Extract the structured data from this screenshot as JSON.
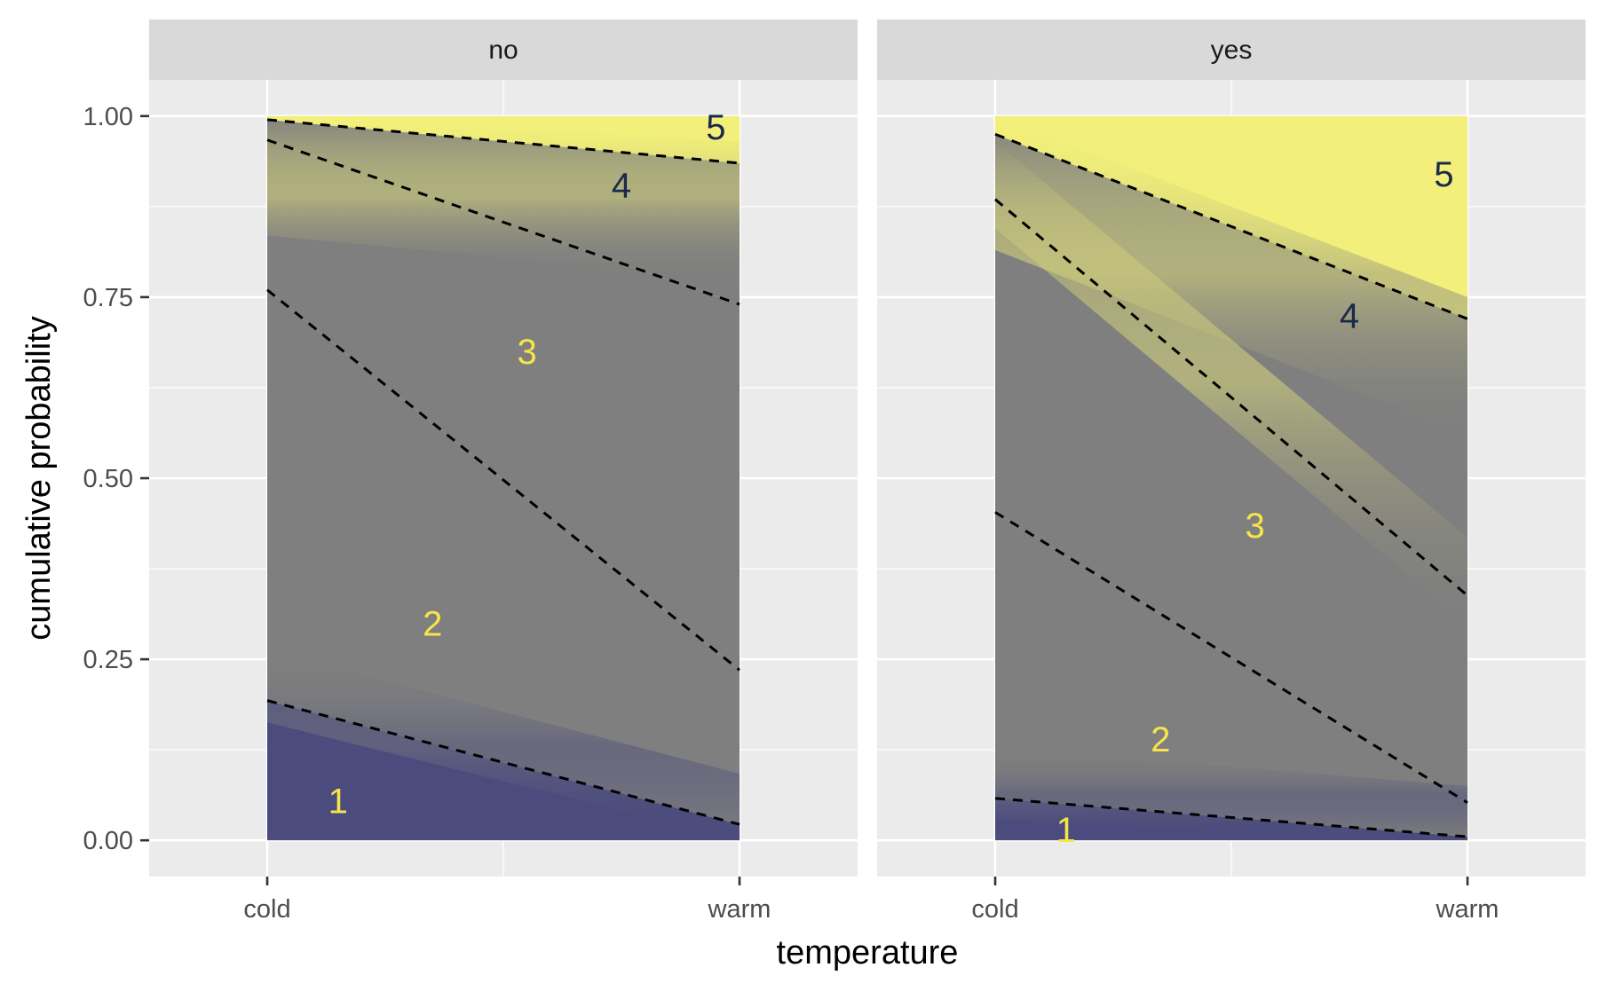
{
  "chart_data": {
    "type": "area",
    "xlabel": "temperature",
    "ylabel": "cumulative probability",
    "x_categories": [
      "cold",
      "warm"
    ],
    "y_ticks": [
      "0.00",
      "0.25",
      "0.50",
      "0.75",
      "1.00"
    ],
    "ylim": [
      0,
      1
    ],
    "grid": true,
    "legend": "none",
    "colors": {
      "panel_bg": "#ebebeb",
      "strip_bg": "#d9d9d9",
      "grid": "#ffffff",
      "band_1": "#4b4b7d",
      "band_mid": "#7f7f7f",
      "band_5": "#f2f07a",
      "dashed_line": "#000000",
      "label_light": "#f7e44a",
      "label_dark": "#1a2a4a"
    },
    "panels": [
      {
        "facet": "no",
        "boundaries": [
          {
            "name": "1",
            "cold": 0.193,
            "warm": 0.022
          },
          {
            "name": "2",
            "cold": 0.76,
            "warm": 0.235
          },
          {
            "name": "3",
            "cold": 0.967,
            "warm": 0.74
          },
          {
            "name": "4",
            "cold": 0.995,
            "warm": 0.935
          }
        ],
        "labels": [
          {
            "text": "1",
            "x": 0.15,
            "y": 0.055
          },
          {
            "text": "2",
            "x": 0.35,
            "y": 0.3
          },
          {
            "text": "3",
            "x": 0.55,
            "y": 0.675
          },
          {
            "text": "4",
            "x": 0.75,
            "y": 0.905
          },
          {
            "text": "5",
            "x": 0.95,
            "y": 0.985
          }
        ]
      },
      {
        "facet": "yes",
        "boundaries": [
          {
            "name": "1",
            "cold": 0.058,
            "warm": 0.005
          },
          {
            "name": "2",
            "cold": 0.453,
            "warm": 0.052
          },
          {
            "name": "3",
            "cold": 0.885,
            "warm": 0.338
          },
          {
            "name": "4",
            "cold": 0.975,
            "warm": 0.72
          }
        ],
        "labels": [
          {
            "text": "1",
            "x": 0.15,
            "y": 0.015
          },
          {
            "text": "2",
            "x": 0.35,
            "y": 0.14
          },
          {
            "text": "3",
            "x": 0.55,
            "y": 0.435
          },
          {
            "text": "4",
            "x": 0.75,
            "y": 0.725
          },
          {
            "text": "5",
            "x": 0.95,
            "y": 0.92
          }
        ]
      }
    ]
  }
}
